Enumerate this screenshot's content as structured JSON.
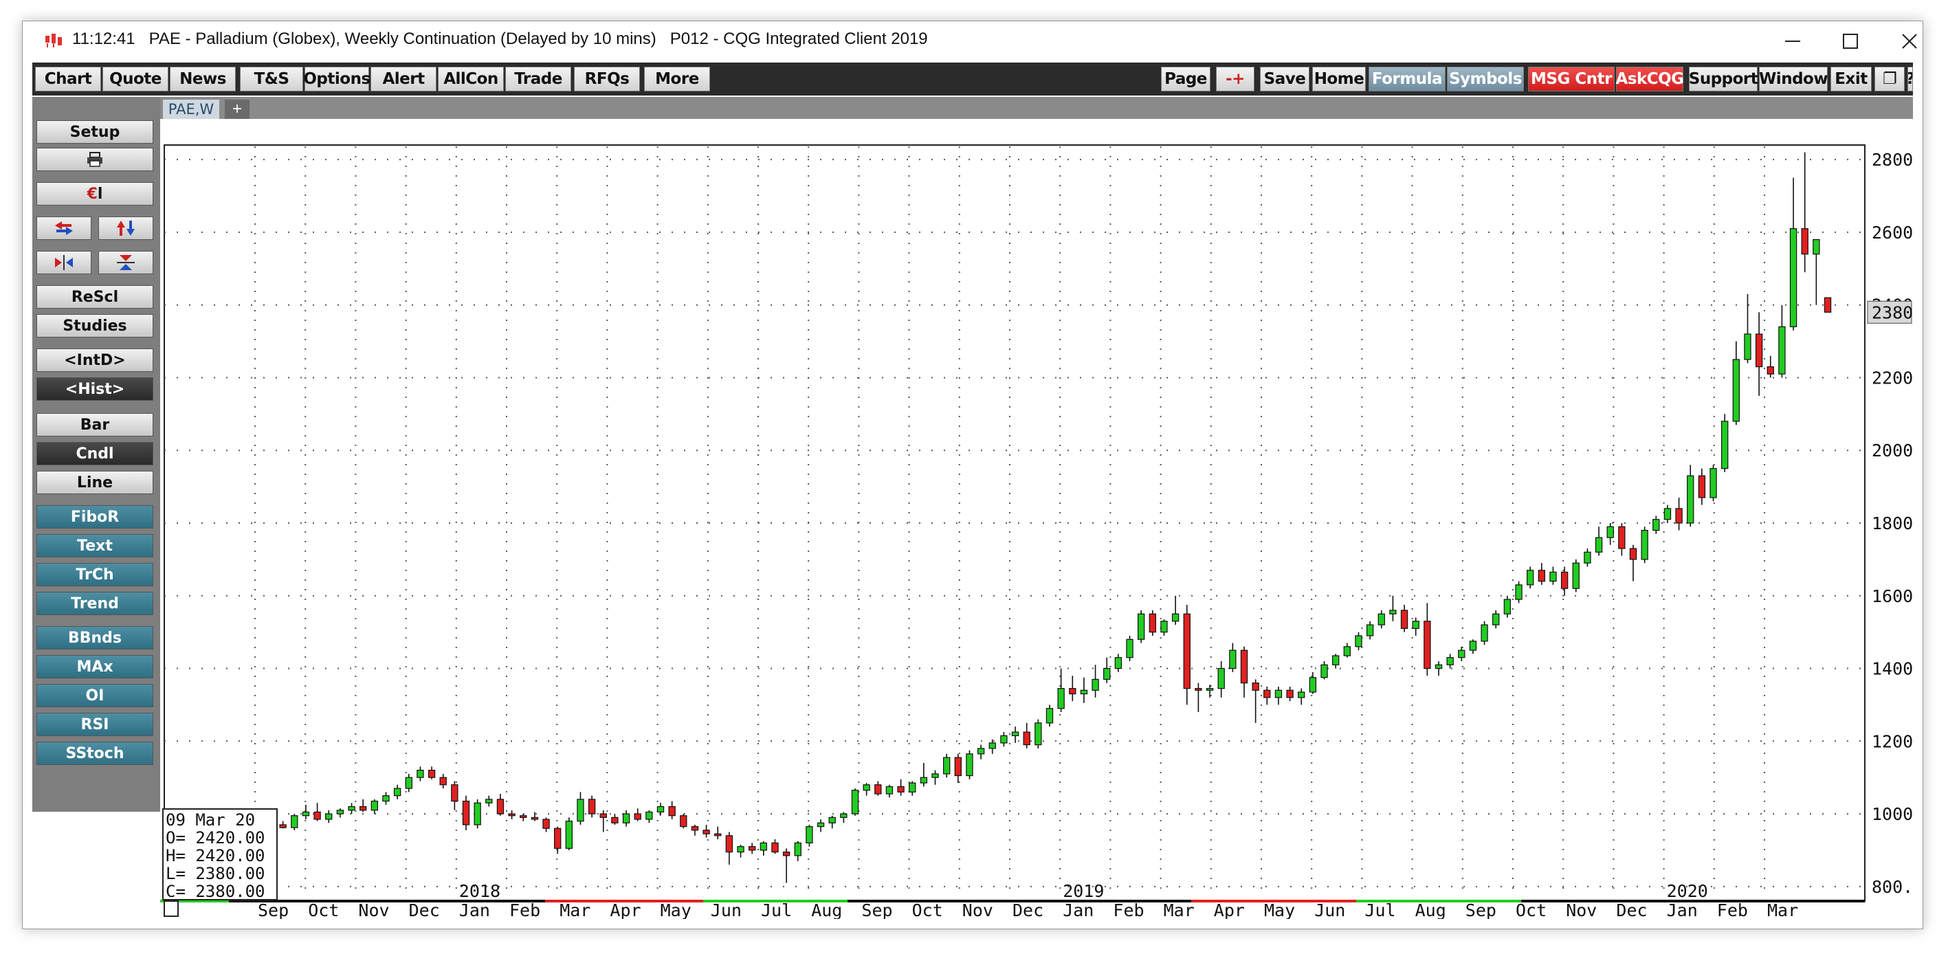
{
  "window": {
    "time": "11:12:41",
    "title": "PAE - Palladium (Globex), Weekly Continuation (Delayed by 10 mins)",
    "session": "P012 - CQG Integrated Client 2019"
  },
  "toolbar": {
    "left": [
      "Chart",
      "Quote",
      "News",
      "T&S",
      "Options",
      "Alert",
      "AllCon",
      "Trade",
      "RFQs",
      "More"
    ],
    "right": [
      "Page",
      "-+",
      "Save",
      "Home",
      "Formula",
      "Symbols",
      "MSG Cntr",
      "AskCQG",
      "Support",
      "Window",
      "Exit",
      "❐",
      "?"
    ]
  },
  "sidebar": {
    "setup": "Setup",
    "rescl": "ReScl",
    "studies": "Studies",
    "intd": "<IntD>",
    "hist": "<Hist>",
    "bar": "Bar",
    "cndl": "Cndl",
    "line": "Line",
    "fibor": "FiboR",
    "text": "Text",
    "trch": "TrCh",
    "trend": "Trend",
    "bbnds": "BBnds",
    "max": "MAx",
    "oi": "OI",
    "rsi": "RSI",
    "sstoch": "SStoch"
  },
  "tabs": {
    "active": "PAE,W",
    "add": "+"
  },
  "readout": {
    "date": "09 Mar 20",
    "o": "O= 2420.00",
    "h": "H= 2420.00",
    "l": "L= 2380.00",
    "c": "C= 2380.00"
  },
  "chart_data": {
    "type": "candlestick",
    "ylim": [
      760,
      2840
    ],
    "y_ticks": [
      800,
      1000,
      1200,
      1400,
      1600,
      1800,
      2000,
      2200,
      2400,
      2600,
      2800
    ],
    "y_tick_labels": [
      "800.00",
      "1000.00",
      "1200.00",
      "1400.00",
      "1600.00",
      "1800.00",
      "2000.00",
      "2200.00",
      "2400.00",
      "2600.00",
      "2800.00"
    ],
    "last_price": 2380,
    "last_price_label": "2380.00",
    "month_labels": [
      "Sep",
      "Oct",
      "Nov",
      "Dec",
      "Jan",
      "Feb",
      "Mar",
      "Apr",
      "May",
      "Jun",
      "Jul",
      "Aug",
      "Sep",
      "Oct",
      "Nov",
      "Dec",
      "Jan",
      "Feb",
      "Mar",
      "Apr",
      "May",
      "Jun",
      "Jul",
      "Aug",
      "Sep",
      "Oct",
      "Nov",
      "Dec",
      "Jan",
      "Feb",
      "Mar"
    ],
    "year_labels": [
      {
        "label": "2018",
        "month_index": 4
      },
      {
        "label": "2019",
        "month_index": 16
      },
      {
        "label": "2020",
        "month_index": 28
      }
    ],
    "colors": {
      "up": "#22cc22",
      "down": "#e02020",
      "last_price_box": "#d8d8d8"
    },
    "candles": [
      [
        965,
        975,
        955,
        970
      ],
      [
        970,
        980,
        960,
        962
      ],
      [
        962,
        1000,
        955,
        995
      ],
      [
        995,
        1025,
        985,
        1005
      ],
      [
        1005,
        1030,
        980,
        985
      ],
      [
        985,
        1010,
        975,
        1000
      ],
      [
        1000,
        1015,
        990,
        1010
      ],
      [
        1010,
        1030,
        1000,
        1020
      ],
      [
        1020,
        1040,
        1005,
        1010
      ],
      [
        1010,
        1040,
        1000,
        1035
      ],
      [
        1035,
        1060,
        1025,
        1050
      ],
      [
        1050,
        1080,
        1040,
        1070
      ],
      [
        1070,
        1110,
        1060,
        1100
      ],
      [
        1100,
        1130,
        1090,
        1120
      ],
      [
        1120,
        1130,
        1095,
        1100
      ],
      [
        1100,
        1110,
        1070,
        1080
      ],
      [
        1080,
        1090,
        1010,
        1035
      ],
      [
        1035,
        1050,
        955,
        970
      ],
      [
        970,
        1040,
        960,
        1030
      ],
      [
        1030,
        1050,
        1020,
        1040
      ],
      [
        1040,
        1055,
        995,
        1000
      ],
      [
        1000,
        1010,
        985,
        995
      ],
      [
        995,
        1000,
        980,
        990
      ],
      [
        990,
        1005,
        980,
        985
      ],
      [
        985,
        990,
        950,
        960
      ],
      [
        960,
        965,
        890,
        905
      ],
      [
        905,
        990,
        900,
        980
      ],
      [
        980,
        1060,
        970,
        1040
      ],
      [
        1040,
        1050,
        990,
        1000
      ],
      [
        1000,
        1010,
        950,
        990
      ],
      [
        990,
        1000,
        970,
        975
      ],
      [
        975,
        1010,
        965,
        1000
      ],
      [
        1000,
        1015,
        980,
        985
      ],
      [
        985,
        1010,
        975,
        1005
      ],
      [
        1005,
        1030,
        995,
        1020
      ],
      [
        1020,
        1035,
        985,
        995
      ],
      [
        995,
        1000,
        960,
        965
      ],
      [
        965,
        970,
        940,
        955
      ],
      [
        955,
        970,
        935,
        945
      ],
      [
        945,
        965,
        930,
        940
      ],
      [
        940,
        950,
        860,
        895
      ],
      [
        895,
        915,
        880,
        910
      ],
      [
        910,
        920,
        890,
        900
      ],
      [
        900,
        925,
        885,
        920
      ],
      [
        920,
        930,
        890,
        895
      ],
      [
        895,
        905,
        810,
        885
      ],
      [
        885,
        925,
        870,
        920
      ],
      [
        920,
        970,
        910,
        965
      ],
      [
        965,
        985,
        950,
        975
      ],
      [
        975,
        995,
        960,
        990
      ],
      [
        990,
        1005,
        975,
        1000
      ],
      [
        1000,
        1070,
        995,
        1065
      ],
      [
        1065,
        1085,
        1050,
        1080
      ],
      [
        1080,
        1090,
        1050,
        1055
      ],
      [
        1055,
        1080,
        1045,
        1075
      ],
      [
        1075,
        1095,
        1050,
        1060
      ],
      [
        1060,
        1090,
        1050,
        1085
      ],
      [
        1085,
        1140,
        1075,
        1100
      ],
      [
        1100,
        1120,
        1080,
        1110
      ],
      [
        1110,
        1165,
        1100,
        1155
      ],
      [
        1155,
        1165,
        1085,
        1105
      ],
      [
        1105,
        1175,
        1095,
        1165
      ],
      [
        1165,
        1190,
        1150,
        1180
      ],
      [
        1180,
        1205,
        1165,
        1195
      ],
      [
        1195,
        1225,
        1185,
        1215
      ],
      [
        1215,
        1240,
        1195,
        1225
      ],
      [
        1225,
        1250,
        1180,
        1190
      ],
      [
        1190,
        1260,
        1180,
        1250
      ],
      [
        1250,
        1300,
        1240,
        1290
      ],
      [
        1290,
        1400,
        1280,
        1345
      ],
      [
        1345,
        1380,
        1310,
        1330
      ],
      [
        1330,
        1375,
        1305,
        1340
      ],
      [
        1340,
        1410,
        1320,
        1370
      ],
      [
        1370,
        1430,
        1360,
        1400
      ],
      [
        1400,
        1440,
        1390,
        1430
      ],
      [
        1430,
        1490,
        1420,
        1480
      ],
      [
        1480,
        1560,
        1470,
        1550
      ],
      [
        1550,
        1560,
        1490,
        1500
      ],
      [
        1500,
        1535,
        1490,
        1530
      ],
      [
        1530,
        1600,
        1520,
        1550
      ],
      [
        1550,
        1575,
        1300,
        1345
      ],
      [
        1345,
        1360,
        1280,
        1340
      ],
      [
        1340,
        1355,
        1320,
        1345
      ],
      [
        1345,
        1420,
        1320,
        1400
      ],
      [
        1400,
        1470,
        1390,
        1450
      ],
      [
        1450,
        1460,
        1320,
        1360
      ],
      [
        1360,
        1370,
        1250,
        1340
      ],
      [
        1340,
        1350,
        1300,
        1320
      ],
      [
        1320,
        1350,
        1300,
        1340
      ],
      [
        1340,
        1350,
        1310,
        1320
      ],
      [
        1320,
        1345,
        1300,
        1335
      ],
      [
        1335,
        1390,
        1330,
        1375
      ],
      [
        1375,
        1420,
        1370,
        1410
      ],
      [
        1410,
        1440,
        1400,
        1435
      ],
      [
        1435,
        1470,
        1430,
        1460
      ],
      [
        1460,
        1500,
        1450,
        1490
      ],
      [
        1490,
        1530,
        1480,
        1520
      ],
      [
        1520,
        1560,
        1510,
        1550
      ],
      [
        1550,
        1600,
        1530,
        1560
      ],
      [
        1560,
        1575,
        1500,
        1510
      ],
      [
        1510,
        1540,
        1490,
        1530
      ],
      [
        1530,
        1580,
        1380,
        1400
      ],
      [
        1400,
        1420,
        1380,
        1410
      ],
      [
        1410,
        1440,
        1400,
        1430
      ],
      [
        1430,
        1460,
        1420,
        1450
      ],
      [
        1450,
        1480,
        1440,
        1475
      ],
      [
        1475,
        1530,
        1465,
        1520
      ],
      [
        1520,
        1560,
        1510,
        1550
      ],
      [
        1550,
        1600,
        1540,
        1590
      ],
      [
        1590,
        1640,
        1580,
        1630
      ],
      [
        1630,
        1680,
        1620,
        1670
      ],
      [
        1670,
        1690,
        1630,
        1640
      ],
      [
        1640,
        1680,
        1630,
        1665
      ],
      [
        1665,
        1680,
        1600,
        1620
      ],
      [
        1620,
        1700,
        1610,
        1690
      ],
      [
        1690,
        1730,
        1680,
        1720
      ],
      [
        1720,
        1790,
        1710,
        1760
      ],
      [
        1760,
        1800,
        1740,
        1790
      ],
      [
        1790,
        1800,
        1710,
        1730
      ],
      [
        1730,
        1740,
        1640,
        1700
      ],
      [
        1700,
        1790,
        1690,
        1780
      ],
      [
        1780,
        1820,
        1770,
        1810
      ],
      [
        1810,
        1850,
        1800,
        1840
      ],
      [
        1840,
        1870,
        1780,
        1800
      ],
      [
        1800,
        1960,
        1790,
        1930
      ],
      [
        1930,
        1950,
        1850,
        1870
      ],
      [
        1870,
        1960,
        1860,
        1950
      ],
      [
        1950,
        2100,
        1940,
        2080
      ],
      [
        2080,
        2300,
        2070,
        2250
      ],
      [
        2250,
        2430,
        2240,
        2320
      ],
      [
        2320,
        2380,
        2150,
        2230
      ],
      [
        2230,
        2260,
        2200,
        2210
      ],
      [
        2210,
        2400,
        2200,
        2340
      ],
      [
        2340,
        2750,
        2330,
        2610
      ],
      [
        2610,
        2820,
        2490,
        2540
      ],
      [
        2540,
        2560,
        2400,
        2580
      ],
      [
        2420,
        2420,
        2380,
        2380
      ]
    ]
  }
}
